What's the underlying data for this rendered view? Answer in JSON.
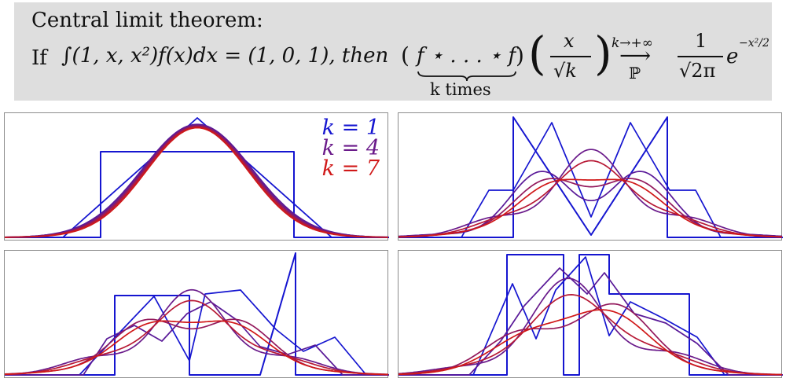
{
  "header": {
    "line1": "Central limit theorem:",
    "cond_prefix": "If",
    "integral": "∫(1, x, x²)f(x)dx = (1, 0, 1), then",
    "conv_open": "(",
    "conv_body": "f ⋆ . . . ⋆ f",
    "conv_close": ")",
    "conv_under": "k times",
    "frac_num": "x",
    "frac_den": "√k",
    "limit_top": "k→+∞",
    "limit_arrow": "⟶",
    "limit_bottom": "ℙ",
    "gauss_num": "1",
    "gauss_den": "√2π",
    "gauss_e": "e",
    "gauss_exp": "−x²/2"
  },
  "legend": [
    {
      "label": "k = 1",
      "color": "#1515d0"
    },
    {
      "label": "k = 4",
      "color": "#6a1a8a"
    },
    {
      "label": "k = 7",
      "color": "#d01818"
    }
  ],
  "colors": {
    "k1": "#1515d0",
    "k4": "#6a1a8a",
    "k7": "#d01818",
    "gauss": "#c01010",
    "banner_bg": "#dedede"
  },
  "panels": [
    {
      "name": "uniform-density"
    },
    {
      "name": "v-shaped-density"
    },
    {
      "name": "irregular-density"
    },
    {
      "name": "stepped-density"
    }
  ]
}
